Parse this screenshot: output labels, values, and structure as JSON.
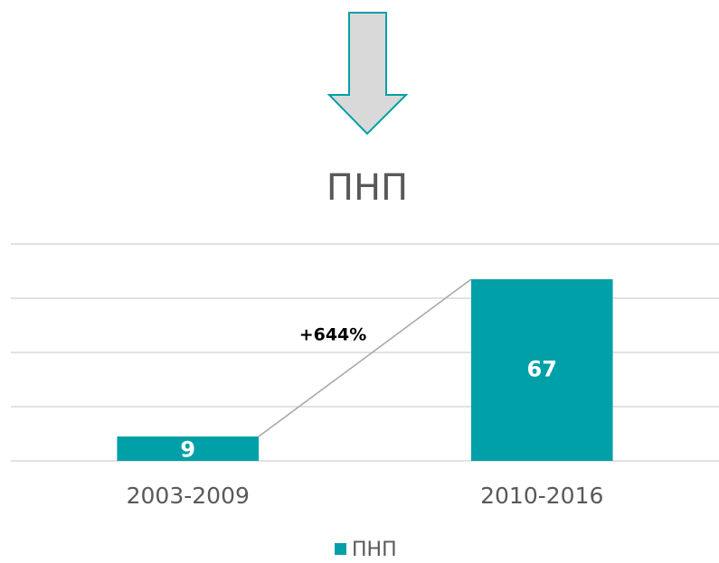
{
  "chart_data": {
    "type": "bar",
    "title": "ПНП",
    "categories": [
      "2003-2009",
      "2010-2016"
    ],
    "series": [
      {
        "name": "ПНП",
        "color": "#00a0a8",
        "values": [
          9,
          67
        ]
      }
    ],
    "ylim": [
      0,
      80
    ],
    "yticks": [
      0,
      20,
      40,
      60,
      80
    ],
    "grid": true,
    "annotation": "+644%",
    "legend": "bottom"
  }
}
